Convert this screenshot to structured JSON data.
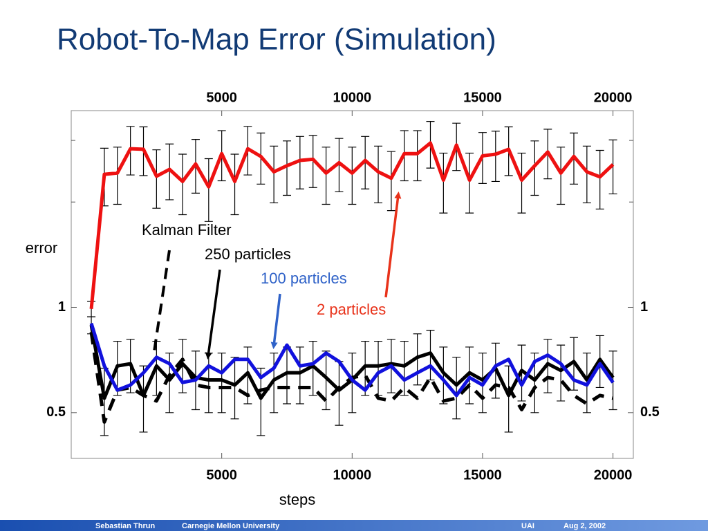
{
  "title": "Robot-To-Map Error (Simulation)",
  "footer": {
    "author": "Sebastian Thrun",
    "institution": "Carnegie Mellon University",
    "venue": "UAI",
    "date": "Aug 2, 2002"
  },
  "chart_data": {
    "type": "line",
    "y_label": "error",
    "x_label": "steps",
    "annotations": [
      "Kalman Filter",
      "250 particles",
      "100 particles",
      "2 particles"
    ],
    "x": [
      0,
      500,
      1000,
      1500,
      2000,
      2500,
      3000,
      3500,
      4000,
      4500,
      5000,
      5500,
      6000,
      6500,
      7000,
      7500,
      8000,
      8500,
      9000,
      9500,
      10000,
      10500,
      11000,
      11500,
      12000,
      12500,
      13000,
      13500,
      14000,
      14500,
      15000,
      15500,
      16000,
      16500,
      17000,
      17500,
      18000,
      18500,
      19000,
      19500,
      20000
    ],
    "series": [
      {
        "name": "2 particles",
        "color": "#ee1111",
        "line_style": "solid",
        "values": [
          0.99,
          2.4,
          2.42,
          2.84,
          2.83,
          2.37,
          2.48,
          2.29,
          2.57,
          2.21,
          2.75,
          2.29,
          2.84,
          2.7,
          2.44,
          2.54,
          2.63,
          2.65,
          2.42,
          2.59,
          2.42,
          2.63,
          2.44,
          2.34,
          2.75,
          2.75,
          2.95,
          2.31,
          2.91,
          2.31,
          2.71,
          2.74,
          2.83,
          2.31,
          2.54,
          2.78,
          2.42,
          2.7,
          2.44,
          2.36,
          2.56
        ],
        "errors": [
          0.05,
          0.45,
          0.45,
          0.45,
          0.45,
          0.45,
          0.45,
          0.45,
          0.45,
          0.45,
          0.45,
          0.45,
          0.45,
          0.45,
          0.45,
          0.45,
          0.45,
          0.45,
          0.45,
          0.45,
          0.45,
          0.45,
          0.45,
          0.45,
          0.45,
          0.45,
          0.45,
          0.45,
          0.45,
          0.45,
          0.45,
          0.45,
          0.45,
          0.45,
          0.45,
          0.45,
          0.45,
          0.45,
          0.45,
          0.45,
          0.45
        ]
      },
      {
        "name": "250 particles",
        "color": "#000000",
        "line_style": "solid",
        "values": [
          0.89,
          0.55,
          0.68,
          0.69,
          0.56,
          0.68,
          0.62,
          0.69,
          0.63,
          0.62,
          0.62,
          0.6,
          0.65,
          0.55,
          0.62,
          0.65,
          0.65,
          0.68,
          0.63,
          0.58,
          0.62,
          0.68,
          0.68,
          0.69,
          0.68,
          0.72,
          0.74,
          0.65,
          0.6,
          0.65,
          0.62,
          0.67,
          0.56,
          0.66,
          0.62,
          0.69,
          0.66,
          0.7,
          0.62,
          0.71,
          0.63
        ],
        "errors": [
          0.05,
          0.12,
          0.12,
          0.12,
          0.12,
          0.12,
          0.12,
          0.12,
          0.12,
          0.12,
          0.12,
          0.12,
          0.12,
          0.12,
          0.12,
          0.12,
          0.12,
          0.12,
          0.12,
          0.12,
          0.12,
          0.12,
          0.12,
          0.12,
          0.12,
          0.12,
          0.12,
          0.12,
          0.12,
          0.12,
          0.12,
          0.12,
          0.12,
          0.12,
          0.12,
          0.12,
          0.12,
          0.12,
          0.12,
          0.12,
          0.12
        ]
      },
      {
        "name": "Kalman Filter",
        "color": "#000000",
        "line_style": "dashed",
        "values": [
          0.85,
          0.47,
          0.58,
          0.59,
          0.56,
          0.54,
          0.64,
          0.71,
          0.6,
          0.59,
          0.59,
          0.59,
          0.56,
          0.58,
          0.59,
          0.59,
          0.59,
          0.59,
          0.54,
          0.59,
          0.63,
          0.64,
          0.55,
          0.54,
          0.59,
          0.55,
          0.63,
          0.54,
          0.55,
          0.6,
          0.55,
          0.6,
          0.59,
          0.51,
          0.59,
          0.63,
          0.62,
          0.56,
          0.53,
          0.56,
          0.55
        ]
      },
      {
        "name": "100 particles",
        "color": "#1111dd",
        "line_style": "solid",
        "values": [
          0.9,
          0.68,
          0.58,
          0.6,
          0.65,
          0.72,
          0.69,
          0.61,
          0.62,
          0.68,
          0.65,
          0.71,
          0.71,
          0.63,
          0.67,
          0.78,
          0.68,
          0.69,
          0.74,
          0.7,
          0.62,
          0.58,
          0.65,
          0.68,
          0.62,
          0.65,
          0.68,
          0.62,
          0.56,
          0.63,
          0.6,
          0.68,
          0.71,
          0.6,
          0.7,
          0.73,
          0.69,
          0.62,
          0.6,
          0.69,
          0.61
        ]
      }
    ],
    "xlim": [
      -770,
      20780
    ],
    "xticks": [
      5000,
      10000,
      15000,
      20000
    ],
    "ylim": [
      0.37,
      3.65
    ],
    "yticks": [
      0.5,
      1
    ],
    "yminorticks": [
      2,
      3
    ],
    "log_y": true
  }
}
